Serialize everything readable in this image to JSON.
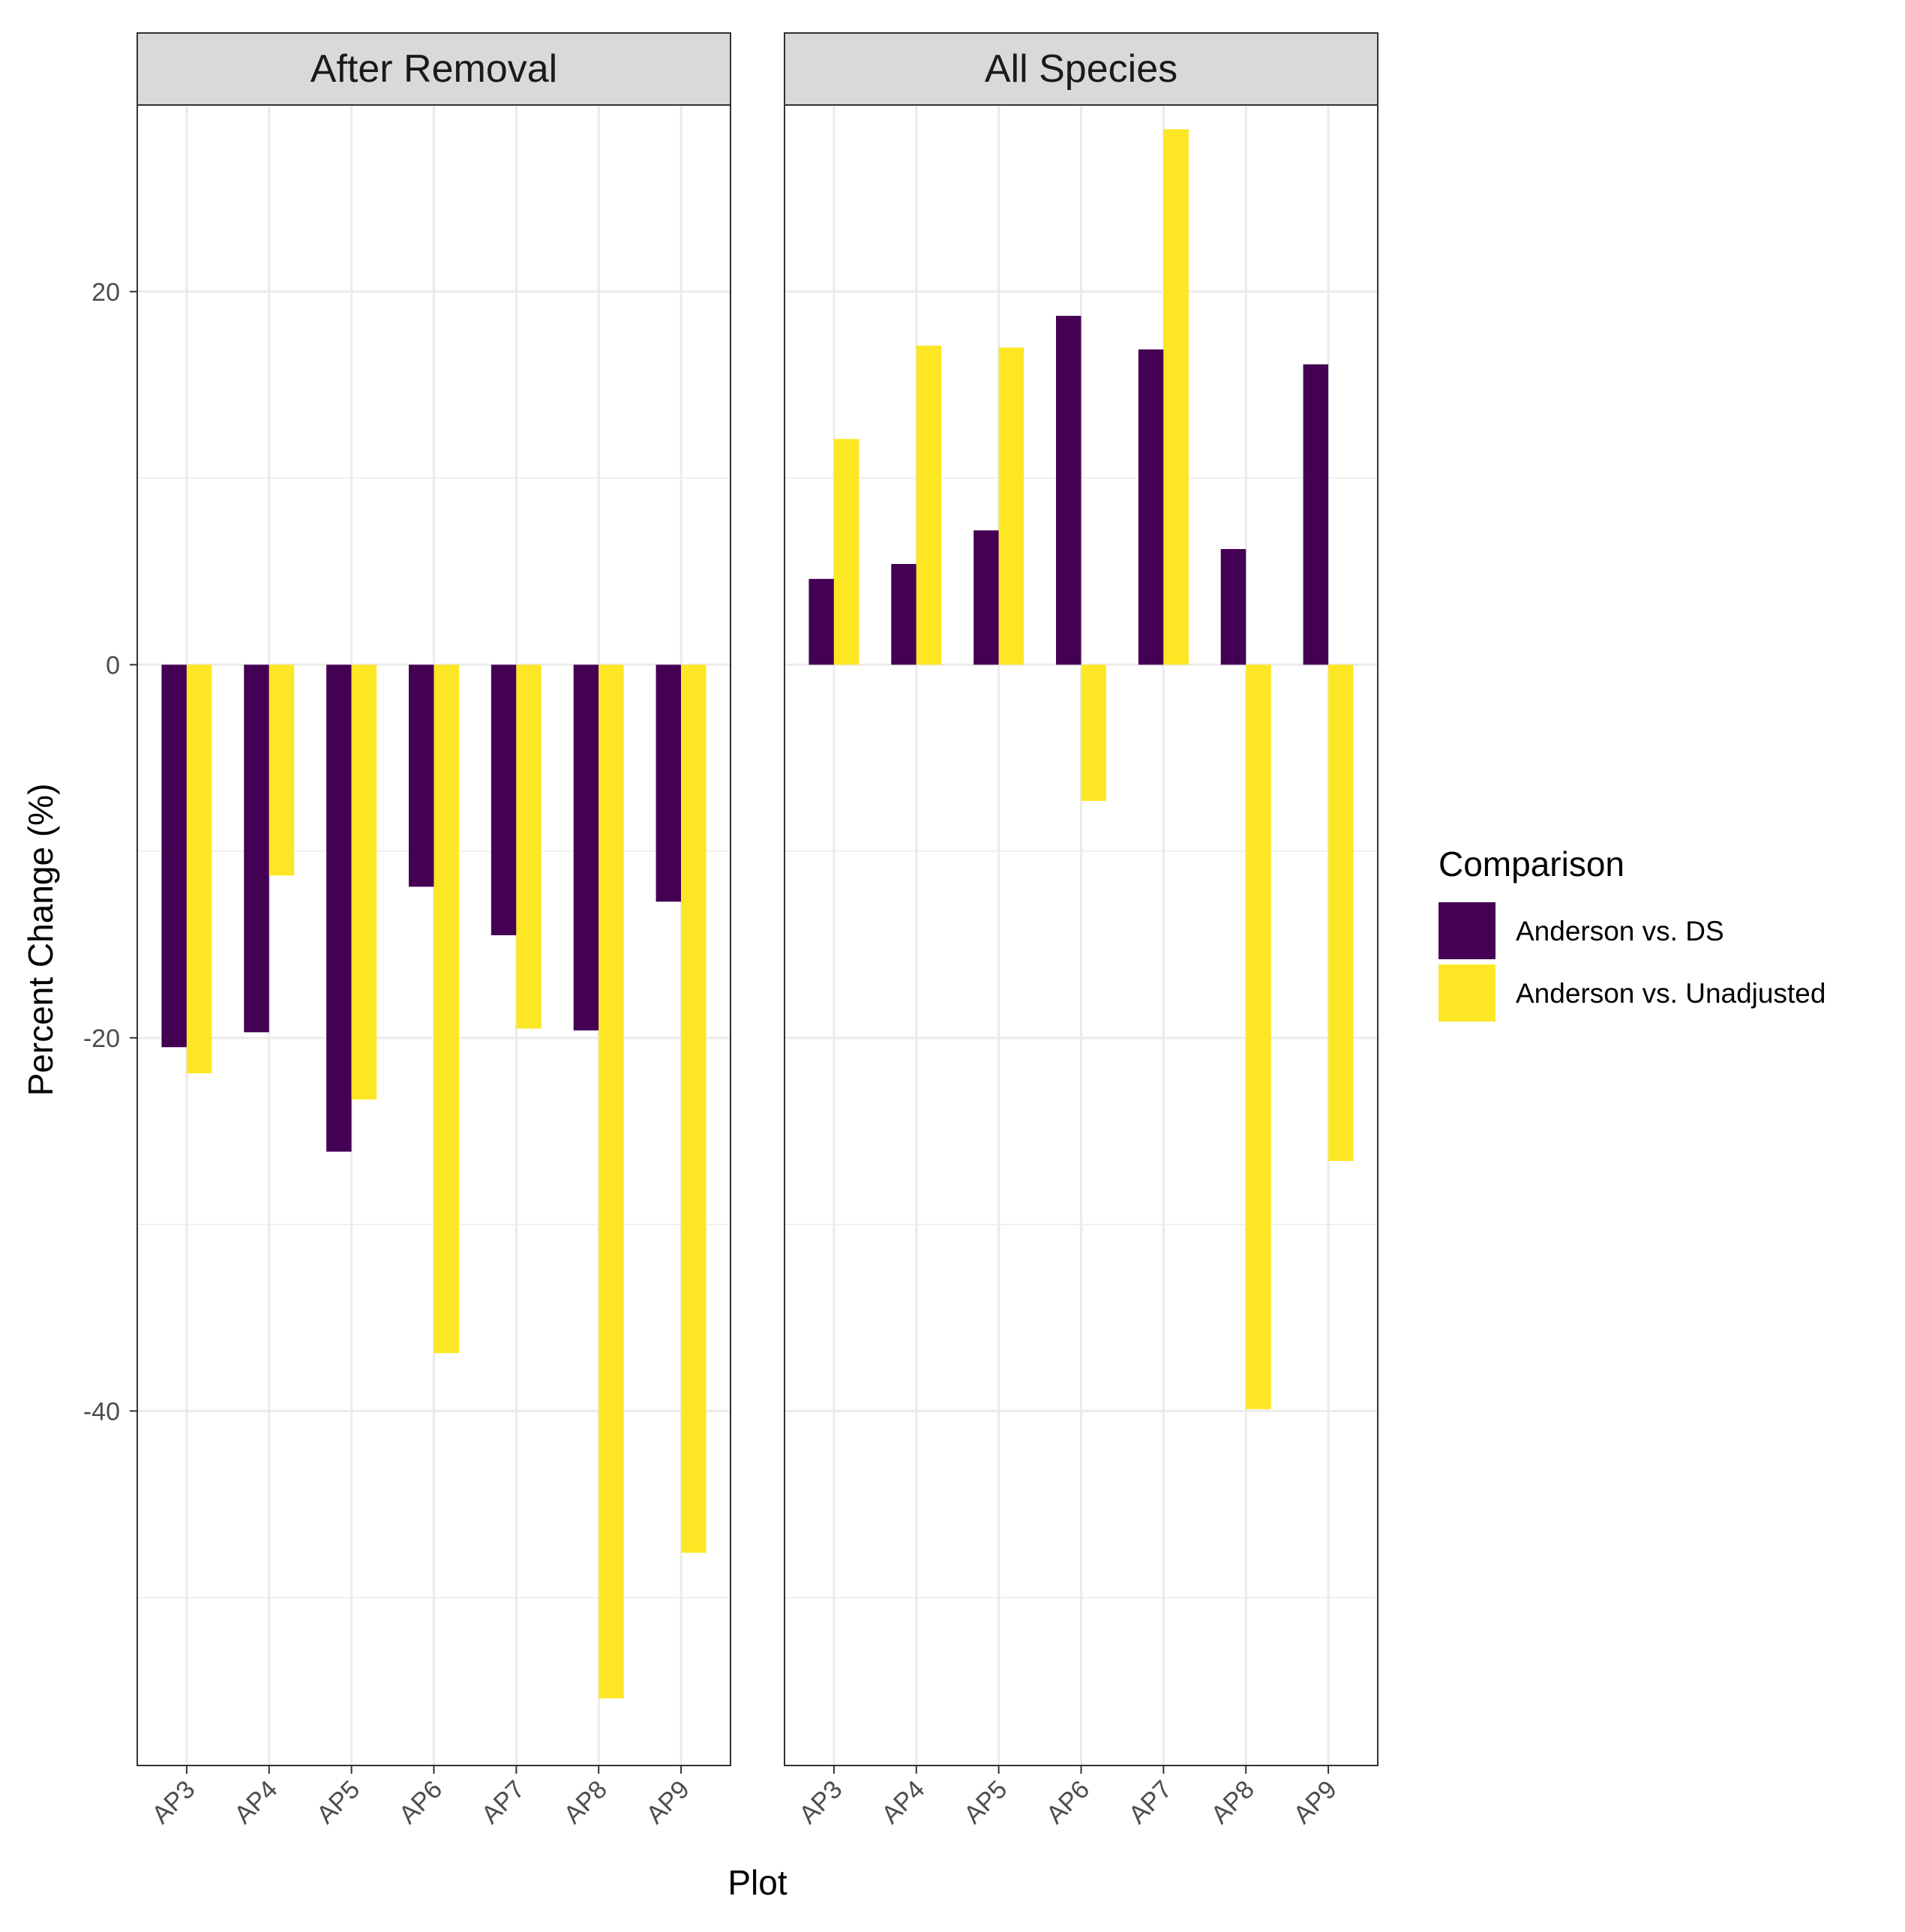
{
  "chart_data": {
    "type": "bar",
    "xlabel": "Plot",
    "ylabel": "Percent Change (%)",
    "ylim": [
      -59,
      30
    ],
    "y_ticks": [
      {
        "value": 20,
        "label": "20"
      },
      {
        "value": 0,
        "label": "0"
      },
      {
        "value": -20,
        "label": "-20"
      },
      {
        "value": -40,
        "label": "-40"
      }
    ],
    "y_minor_ticks": [
      30,
      10,
      -10,
      -30,
      -50
    ],
    "categories": [
      "AP3",
      "AP4",
      "AP5",
      "AP6",
      "AP7",
      "AP8",
      "AP9"
    ],
    "legend": {
      "title": "Comparison",
      "placement": "right",
      "entries": [
        {
          "name": "Anderson vs. DS",
          "color": "#440154"
        },
        {
          "name": "Anderson vs. Unadjusted",
          "color": "#FDE725"
        }
      ]
    },
    "facets": [
      {
        "title": "After Removal",
        "series": [
          {
            "name": "Anderson vs. DS",
            "color": "#440154",
            "values": [
              -20.5,
              -19.7,
              -26.1,
              -11.9,
              -14.5,
              -19.6,
              -12.7
            ]
          },
          {
            "name": "Anderson vs. Unadjusted",
            "color": "#FDE725",
            "values": [
              -21.9,
              -11.3,
              -23.3,
              -36.9,
              -19.5,
              -55.4,
              -47.6
            ]
          }
        ]
      },
      {
        "title": "All Species",
        "series": [
          {
            "name": "Anderson vs. DS",
            "color": "#440154",
            "values": [
              4.6,
              5.4,
              7.2,
              18.7,
              16.9,
              6.2,
              16.1
            ]
          },
          {
            "name": "Anderson vs. Unadjusted",
            "color": "#FDE725",
            "values": [
              12.1,
              17.1,
              17.0,
              -7.3,
              28.7,
              -39.9,
              -26.6
            ]
          }
        ]
      }
    ]
  }
}
